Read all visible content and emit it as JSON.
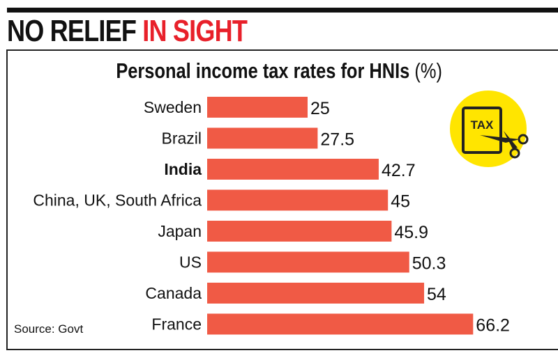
{
  "headline": {
    "part1": "NO RELIEF",
    "part2": "IN SIGHT"
  },
  "chart_data": {
    "type": "bar",
    "orientation": "horizontal",
    "title": "Personal income tax rates for HNIs",
    "unit": "(%)",
    "categories": [
      "Sweden",
      "Brazil",
      "India",
      "China, UK, South Africa",
      "Japan",
      "US",
      "Canada",
      "France"
    ],
    "values": [
      25,
      27.5,
      42.7,
      45,
      45.9,
      50.3,
      54,
      66.2
    ],
    "value_labels": [
      "25",
      "27.5",
      "42.7",
      "45",
      "45.9",
      "50.3",
      "54",
      "66.2"
    ],
    "highlight": "India",
    "bar_color": "#f05a45",
    "grid": false,
    "xlim": [
      0,
      70
    ]
  },
  "icon": {
    "name": "tax-scissors-icon",
    "label": "TAX",
    "color": "#ffe500"
  },
  "source": "Source: Govt",
  "colors": {
    "headline_red": "#e8202a",
    "text": "#111111"
  }
}
